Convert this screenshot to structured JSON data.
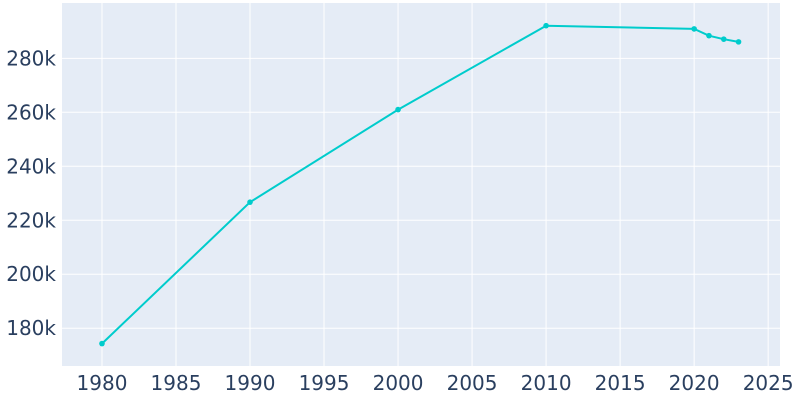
{
  "chart_data": {
    "type": "line",
    "title": "",
    "xlabel": "",
    "ylabel": "",
    "x": [
      1980,
      1990,
      2000,
      2010,
      2020,
      2021,
      2022,
      2023
    ],
    "series": [
      {
        "values": [
          174300,
          226700,
          261000,
          292100,
          290900,
          288400,
          287100,
          286100
        ]
      }
    ],
    "xlim": [
      1977.3,
      2025.8
    ],
    "ylim": [
      166000,
      300500
    ],
    "x_ticks": [
      1980,
      1985,
      1990,
      1995,
      2000,
      2005,
      2010,
      2015,
      2020,
      2025
    ],
    "x_tick_labels": [
      "1980",
      "1985",
      "1990",
      "1995",
      "2000",
      "2005",
      "2010",
      "2015",
      "2020",
      "2025"
    ],
    "y_ticks": [
      180000,
      200000,
      220000,
      240000,
      260000,
      280000
    ],
    "y_tick_labels": [
      "180k",
      "200k",
      "220k",
      "240k",
      "260k",
      "280k"
    ],
    "grid": true,
    "colors": {
      "line": "#00cccc",
      "plot_bg": "#e5ecf6",
      "grid": "#ffffff",
      "text": "#2a3f5f"
    }
  }
}
